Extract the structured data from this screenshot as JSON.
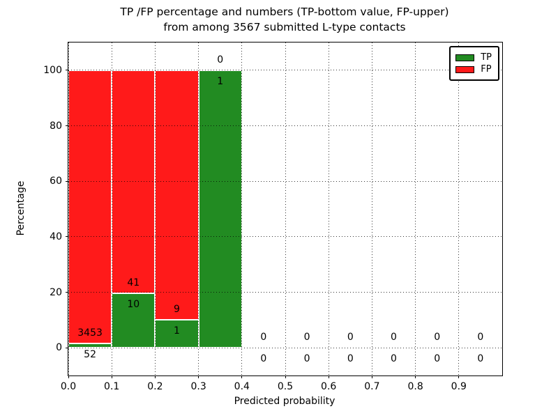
{
  "figure": {
    "background": "#ffffff",
    "title_line1": "TP /FP percentage and numbers (TP-bottom value, FP-upper)",
    "title_line2": "from among 3567 submitted L-type contacts"
  },
  "chart_data": {
    "type": "bar",
    "subtype": "stacked-percentage-histogram",
    "title": "TP /FP percentage and numbers (TP-bottom value, FP-upper) from among 3567 submitted L-type contacts",
    "xlabel": "Predicted probability",
    "ylabel": "Percentage",
    "xlim": [
      0.0,
      1.0
    ],
    "ylim": [
      -10,
      110
    ],
    "grid": "dotted, drawn above bars",
    "xticks": [
      {
        "value": 0.0,
        "label": "0.0"
      },
      {
        "value": 0.1,
        "label": "0.1"
      },
      {
        "value": 0.2,
        "label": "0.2"
      },
      {
        "value": 0.3,
        "label": "0.3"
      },
      {
        "value": 0.4,
        "label": "0.4"
      },
      {
        "value": 0.5,
        "label": "0.5"
      },
      {
        "value": 0.6,
        "label": "0.6"
      },
      {
        "value": 0.7,
        "label": "0.7"
      },
      {
        "value": 0.8,
        "label": "0.8"
      },
      {
        "value": 0.9,
        "label": "0.9"
      }
    ],
    "yticks": [
      {
        "value": 0,
        "label": "0"
      },
      {
        "value": 20,
        "label": "20"
      },
      {
        "value": 40,
        "label": "40"
      },
      {
        "value": 60,
        "label": "60"
      },
      {
        "value": 80,
        "label": "80"
      },
      {
        "value": 100,
        "label": "100"
      }
    ],
    "annotation_rule": "per bin: FP count printed above top of green TP segment, TP count printed below it",
    "bins": [
      {
        "x0": 0.0,
        "x1": 0.1,
        "tp_count": 52,
        "fp_count": 3453,
        "tp_pct": 1.48,
        "fp_pct": 98.52
      },
      {
        "x0": 0.1,
        "x1": 0.2,
        "tp_count": 10,
        "fp_count": 41,
        "tp_pct": 19.61,
        "fp_pct": 80.39
      },
      {
        "x0": 0.2,
        "x1": 0.3,
        "tp_count": 1,
        "fp_count": 9,
        "tp_pct": 10.0,
        "fp_pct": 90.0
      },
      {
        "x0": 0.3,
        "x1": 0.4,
        "tp_count": 1,
        "fp_count": 0,
        "tp_pct": 100.0,
        "fp_pct": 0.0
      },
      {
        "x0": 0.4,
        "x1": 0.5,
        "tp_count": 0,
        "fp_count": 0,
        "tp_pct": 0.0,
        "fp_pct": 0.0
      },
      {
        "x0": 0.5,
        "x1": 0.6,
        "tp_count": 0,
        "fp_count": 0,
        "tp_pct": 0.0,
        "fp_pct": 0.0
      },
      {
        "x0": 0.6,
        "x1": 0.7,
        "tp_count": 0,
        "fp_count": 0,
        "tp_pct": 0.0,
        "fp_pct": 0.0
      },
      {
        "x0": 0.7,
        "x1": 0.8,
        "tp_count": 0,
        "fp_count": 0,
        "tp_pct": 0.0,
        "fp_pct": 0.0
      },
      {
        "x0": 0.8,
        "x1": 0.9,
        "tp_count": 0,
        "fp_count": 0,
        "tp_pct": 0.0,
        "fp_pct": 0.0
      },
      {
        "x0": 0.9,
        "x1": 1.0,
        "tp_count": 0,
        "fp_count": 0,
        "tp_pct": 0.0,
        "fp_pct": 0.0
      }
    ],
    "legend": {
      "position": "upper-right",
      "items": [
        {
          "label": "TP",
          "color": "#228b22"
        },
        {
          "label": "FP",
          "color": "#ff1a1a"
        }
      ]
    },
    "colors": {
      "tp": "#228b22",
      "fp": "#ff1a1a",
      "bar_edge": "#ffffff",
      "grid": "#000000",
      "spine": "#000000",
      "text": "#000000"
    }
  }
}
